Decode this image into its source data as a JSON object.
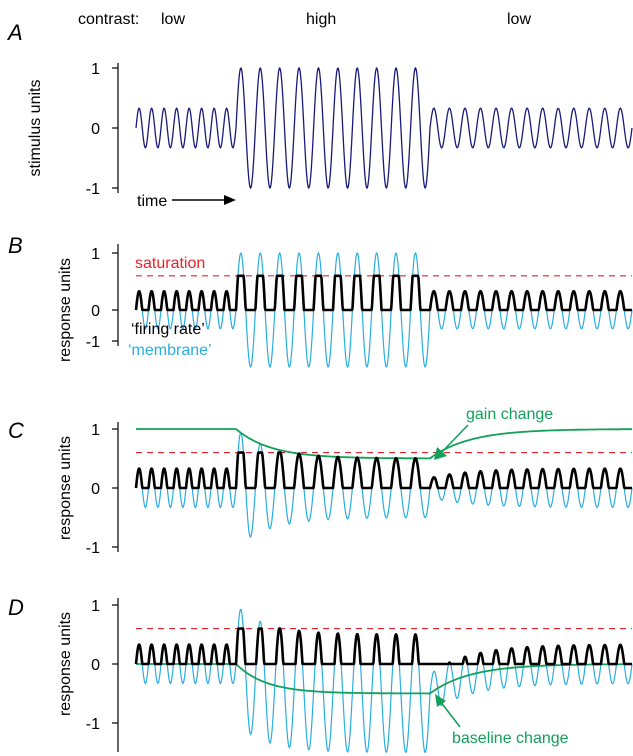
{
  "header": {
    "contrast_prefix": "contrast:",
    "segment_labels": [
      "low",
      "high",
      "low"
    ]
  },
  "colors": {
    "stimulus": "#1a1a7a",
    "membrane": "#29aee0",
    "firing": "#000000",
    "saturation": "#e8232a",
    "adaptation": "#12a05a"
  },
  "panels": [
    {
      "label": "A",
      "ylabel": "stimulus units",
      "yticks": [
        "1",
        "0",
        "-1"
      ],
      "x_annotation": "time"
    },
    {
      "label": "B",
      "ylabel": "response units",
      "yticks": [
        "1",
        "0",
        "-1"
      ],
      "saturation_label": "saturation",
      "firing_label": "‘firing rate’",
      "membrane_label": "‘membrane’"
    },
    {
      "label": "C",
      "ylabel": "response units",
      "yticks": [
        "1",
        "0",
        "-1"
      ],
      "annotation": "gain change"
    },
    {
      "label": "D",
      "ylabel": "response units",
      "yticks": [
        "1",
        "0",
        "-1"
      ],
      "annotation": "baseline change"
    }
  ],
  "model": {
    "cycles_per_segment": [
      8,
      10,
      13
    ],
    "stimulus_amplitude": {
      "low": 0.33,
      "high": 1.0
    },
    "saturation_level": 0.6,
    "gain_initial": 1.0,
    "gain_adapted": 0.5,
    "baseline_adapted": -0.5
  }
}
